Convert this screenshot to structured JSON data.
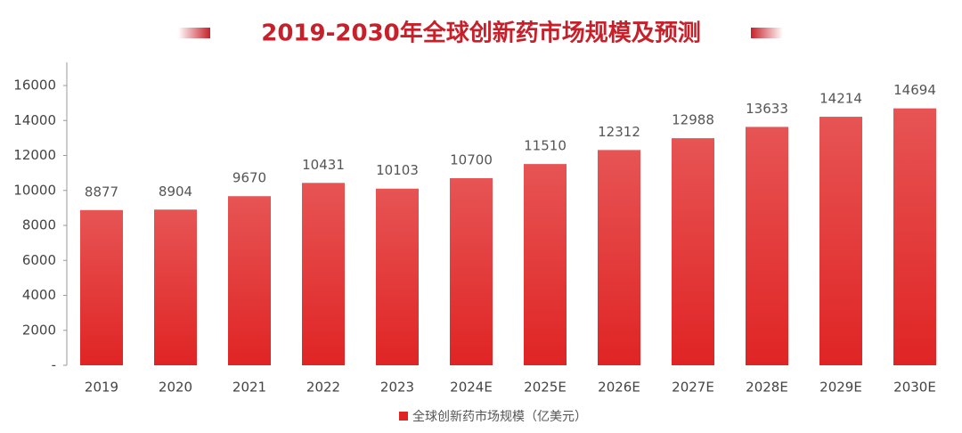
{
  "chart_data": {
    "type": "bar",
    "title": "2019-2030年全球创新药市场规模及预测",
    "categories": [
      "2019",
      "2020",
      "2021",
      "2022",
      "2023",
      "2024E",
      "2025E",
      "2026E",
      "2027E",
      "2028E",
      "2029E",
      "2030E"
    ],
    "series": [
      {
        "name": "全球创新药市场规模（亿美元）",
        "color": "#e02424",
        "values": [
          8877,
          8904,
          9670,
          10431,
          10103,
          10700,
          11510,
          12312,
          12988,
          13633,
          14214,
          14694
        ]
      }
    ],
    "ylim": [
      0,
      17000
    ],
    "yticks": [
      {
        "value": 0,
        "label": "-"
      },
      2000,
      4000,
      6000,
      8000,
      10000,
      12000,
      14000,
      16000
    ],
    "legend": "bottom"
  }
}
